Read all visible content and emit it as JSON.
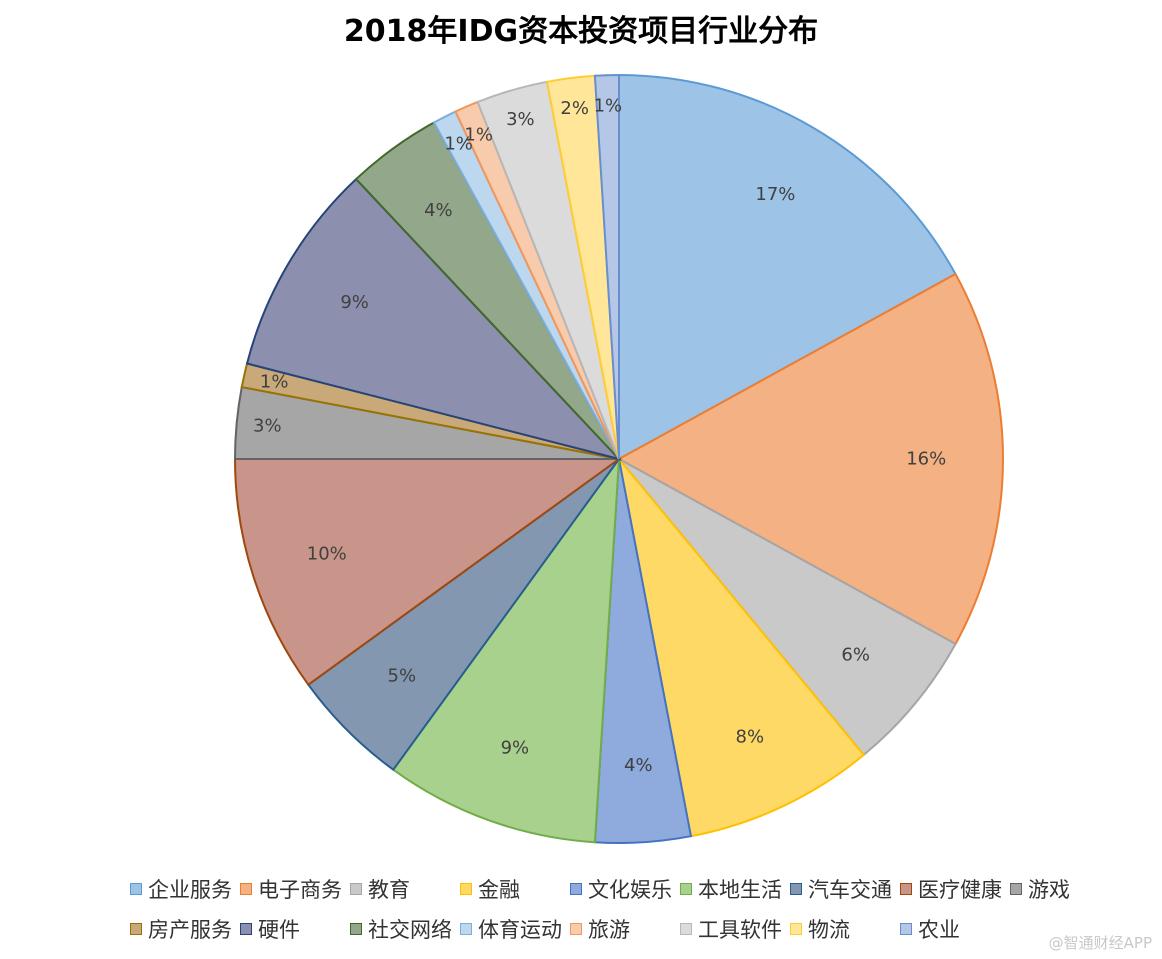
{
  "chart_data": {
    "type": "pie",
    "title": "2018年IDG资本投资项目行业分布",
    "slices": [
      {
        "name": "企业服务",
        "value": 17,
        "label": "17%",
        "fill": "#9dc3e6",
        "stroke": "#5b9bd5"
      },
      {
        "name": "电子商务",
        "value": 16,
        "label": "16%",
        "fill": "#f4b183",
        "stroke": "#ed7d31"
      },
      {
        "name": "教育",
        "value": 6,
        "label": "6%",
        "fill": "#c9c9c9",
        "stroke": "#a5a5a5"
      },
      {
        "name": "金融",
        "value": 8,
        "label": "8%",
        "fill": "#ffd966",
        "stroke": "#ffc000"
      },
      {
        "name": "文化娱乐",
        "value": 4,
        "label": "4%",
        "fill": "#8faadc",
        "stroke": "#4472c4"
      },
      {
        "name": "本地生活",
        "value": 9,
        "label": "9%",
        "fill": "#a9d18e",
        "stroke": "#70ad47"
      },
      {
        "name": "汽车交通",
        "value": 5,
        "label": "5%",
        "fill": "#8497b0",
        "stroke": "#255e91"
      },
      {
        "name": "医疗健康",
        "value": 10,
        "label": "10%",
        "fill": "#c9958a",
        "stroke": "#9e480e"
      },
      {
        "name": "游戏",
        "value": 3,
        "label": "3%",
        "fill": "#a6a6a6",
        "stroke": "#636363"
      },
      {
        "name": "房产服务",
        "value": 1,
        "label": "1%",
        "fill": "#c9a97a",
        "stroke": "#997300"
      },
      {
        "name": "硬件",
        "value": 9,
        "label": "9%",
        "fill": "#8c8fae",
        "stroke": "#264478"
      },
      {
        "name": "社交网络",
        "value": 4,
        "label": "4%",
        "fill": "#93a88a",
        "stroke": "#43682b"
      },
      {
        "name": "体育运动",
        "value": 1,
        "label": "1%",
        "fill": "#bdd7ee",
        "stroke": "#7cafdd"
      },
      {
        "name": "旅游",
        "value": 1,
        "label": "1%",
        "fill": "#f8cbad",
        "stroke": "#f1975a"
      },
      {
        "name": "工具软件",
        "value": 3,
        "label": "3%",
        "fill": "#dbdbdb",
        "stroke": "#b7b7b7"
      },
      {
        "name": "物流",
        "value": 2,
        "label": "2%",
        "fill": "#ffe699",
        "stroke": "#ffcd33"
      },
      {
        "name": "农业",
        "value": 1,
        "label": "1%",
        "fill": "#b4c7e7",
        "stroke": "#698ed0"
      }
    ],
    "legend_position": "bottom"
  },
  "watermark": "@智通财经APP"
}
